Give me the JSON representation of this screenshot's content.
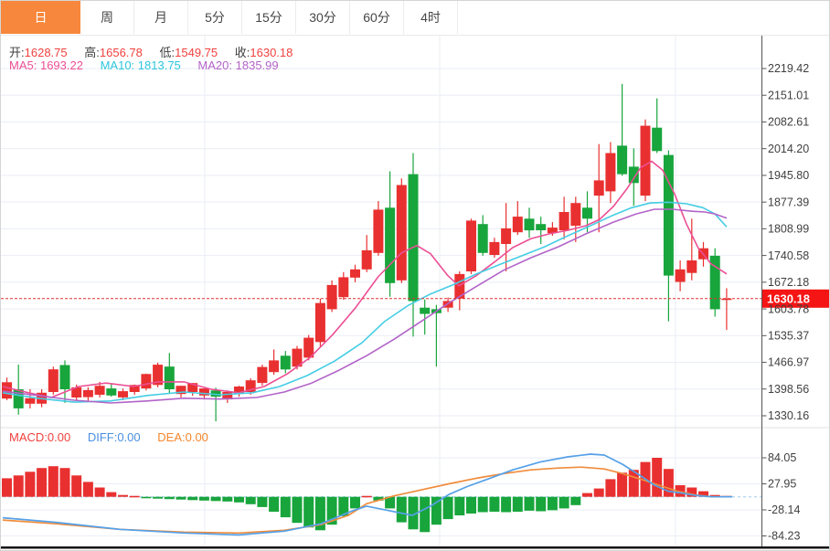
{
  "tabs": {
    "items": [
      {
        "label": "日",
        "active": true
      },
      {
        "label": "周",
        "active": false
      },
      {
        "label": "月",
        "active": false
      },
      {
        "label": "5分",
        "active": false
      },
      {
        "label": "15分",
        "active": false
      },
      {
        "label": "30分",
        "active": false
      },
      {
        "label": "60分",
        "active": false
      },
      {
        "label": "4时",
        "active": false
      }
    ]
  },
  "info": {
    "ohlc": {
      "open_label": "开:",
      "open": "1628.75",
      "high_label": "高:",
      "high": "1656.78",
      "low_label": "低:",
      "low": "1549.75",
      "close_label": "收:",
      "close": "1630.18"
    },
    "ma": {
      "ma5_label": "MA5:",
      "ma5": "1693.22",
      "ma10_label": "MA10:",
      "ma10": "1813.75",
      "ma20_label": "MA20:",
      "ma20": "1835.99"
    }
  },
  "macd_info": {
    "macd_label": "MACD:",
    "macd": "0.00",
    "diff_label": "DIFF:",
    "diff": "0.00",
    "dea_label": "DEA:",
    "dea": "0.00"
  },
  "colors": {
    "up": "#e93030",
    "down": "#18a53c",
    "ma5": "#ec4f95",
    "ma10": "#45cde4",
    "ma20": "#b264c8",
    "diff_line": "#55a0e8",
    "dea_line": "#f08c3c",
    "price_line": "#e03131",
    "badge_bg": "#f51515",
    "badge_text": "#ffffff",
    "grid": "#e9eef5",
    "axis": "#555555",
    "axis_text": "#3f3f3f",
    "zero_line": "#b9d9f0",
    "divider": "#e2e2e2",
    "bottom_bar": "#111111",
    "tab_active_bg": "#f6873c"
  },
  "chart_data": {
    "type": "candlestick+macd",
    "main": {
      "title": "",
      "axis_side": "right",
      "axis_labels": [
        "2219.42",
        "2151.01",
        "2082.61",
        "2014.20",
        "1945.80",
        "1877.39",
        "1808.99",
        "1740.58",
        "1672.18",
        "1603.78",
        "1535.37",
        "1466.97",
        "1398.56",
        "1330.16"
      ],
      "price_max_gridline": 2219.42,
      "price_min_gridline": 1330.16,
      "current_price": 1630.18,
      "current_price_label": "1630.18",
      "candles_ohlc": [
        [
          1374,
          1428,
          1370,
          1416
        ],
        [
          1398,
          1461,
          1333,
          1349
        ],
        [
          1361,
          1398,
          1349,
          1375
        ],
        [
          1361,
          1398,
          1352,
          1389
        ],
        [
          1391,
          1456,
          1384,
          1449
        ],
        [
          1460,
          1472,
          1363,
          1398
        ],
        [
          1377,
          1410,
          1370,
          1403
        ],
        [
          1378,
          1403,
          1368,
          1396
        ],
        [
          1384,
          1417,
          1377,
          1407
        ],
        [
          1400,
          1412,
          1379,
          1382
        ],
        [
          1377,
          1400,
          1370,
          1393
        ],
        [
          1391,
          1410,
          1384,
          1409
        ],
        [
          1400,
          1438,
          1395,
          1437
        ],
        [
          1409,
          1466,
          1403,
          1461
        ],
        [
          1456,
          1491,
          1388,
          1398
        ],
        [
          1386,
          1407,
          1377,
          1407
        ],
        [
          1391,
          1414,
          1381,
          1414
        ],
        [
          1382,
          1400,
          1372,
          1400
        ],
        [
          1395,
          1402,
          1316,
          1379
        ],
        [
          1372,
          1395,
          1363,
          1391
        ],
        [
          1386,
          1407,
          1379,
          1405
        ],
        [
          1391,
          1426,
          1384,
          1421
        ],
        [
          1414,
          1461,
          1407,
          1455
        ],
        [
          1442,
          1500,
          1435,
          1472
        ],
        [
          1484,
          1496,
          1439,
          1449
        ],
        [
          1456,
          1509,
          1449,
          1502
        ],
        [
          1479,
          1537,
          1472,
          1530
        ],
        [
          1519,
          1630,
          1507,
          1619
        ],
        [
          1603,
          1677,
          1596,
          1665
        ],
        [
          1634,
          1698,
          1627,
          1685
        ],
        [
          1684,
          1717,
          1672,
          1705
        ],
        [
          1705,
          1793,
          1698,
          1754
        ],
        [
          1747,
          1880,
          1740,
          1858
        ],
        [
          1863,
          1956,
          1635,
          1670
        ],
        [
          1677,
          1938,
          1670,
          1921
        ],
        [
          1949,
          2003,
          1533,
          1624
        ],
        [
          1607,
          1628,
          1538,
          1591
        ],
        [
          1603,
          1614,
          1456,
          1593
        ],
        [
          1607,
          1633,
          1596,
          1624
        ],
        [
          1630,
          1700,
          1600,
          1693
        ],
        [
          1700,
          1835,
          1693,
          1830
        ],
        [
          1821,
          1844,
          1740,
          1747
        ],
        [
          1742,
          1786,
          1735,
          1775
        ],
        [
          1770,
          1875,
          1700,
          1810
        ],
        [
          1800,
          1880,
          1793,
          1840
        ],
        [
          1835,
          1863,
          1786,
          1805
        ],
        [
          1821,
          1840,
          1770,
          1805
        ],
        [
          1798,
          1826,
          1791,
          1812
        ],
        [
          1805,
          1891,
          1782,
          1852
        ],
        [
          1817,
          1891,
          1775,
          1875
        ],
        [
          1863,
          1905,
          1800,
          1835
        ],
        [
          1894,
          2026,
          1800,
          1933
        ],
        [
          1905,
          2031,
          1875,
          2003
        ],
        [
          2022,
          2180,
          1945,
          1949
        ],
        [
          1968,
          2015,
          1868,
          1926
        ],
        [
          1894,
          2089,
          1880,
          2073
        ],
        [
          2068,
          2143,
          2003,
          2008
        ],
        [
          1998,
          2010,
          1572,
          1689
        ],
        [
          1673,
          1728,
          1649,
          1705
        ],
        [
          1696,
          1835,
          1677,
          1728
        ],
        [
          1731,
          1775,
          1712,
          1759
        ],
        [
          1740,
          1759,
          1584,
          1603
        ],
        [
          1628.75,
          1656.78,
          1549.75,
          1630.18
        ]
      ],
      "ma5_points": [
        [
          2,
          1405
        ],
        [
          30,
          1389
        ],
        [
          55,
          1377
        ],
        [
          85,
          1405
        ],
        [
          115,
          1414
        ],
        [
          145,
          1405
        ],
        [
          172,
          1417
        ],
        [
          200,
          1417
        ],
        [
          230,
          1398
        ],
        [
          260,
          1389
        ],
        [
          288,
          1405
        ],
        [
          313,
          1437
        ],
        [
          338,
          1479
        ],
        [
          363,
          1538
        ],
        [
          388,
          1607
        ],
        [
          413,
          1687
        ],
        [
          438,
          1747
        ],
        [
          455,
          1766
        ],
        [
          470,
          1745
        ],
        [
          489,
          1689
        ],
        [
          501,
          1663
        ],
        [
          520,
          1689
        ],
        [
          540,
          1724
        ],
        [
          560,
          1761
        ],
        [
          580,
          1784
        ],
        [
          600,
          1796
        ],
        [
          620,
          1805
        ],
        [
          640,
          1817
        ],
        [
          655,
          1833
        ],
        [
          670,
          1866
        ],
        [
          685,
          1912
        ],
        [
          700,
          1966
        ],
        [
          712,
          1982
        ],
        [
          724,
          1959
        ],
        [
          737,
          1898
        ],
        [
          750,
          1821
        ],
        [
          763,
          1759
        ],
        [
          777,
          1719
        ],
        [
          794,
          1693.22
        ]
      ],
      "ma10_points": [
        [
          2,
          1389
        ],
        [
          40,
          1375
        ],
        [
          80,
          1365
        ],
        [
          120,
          1368
        ],
        [
          160,
          1382
        ],
        [
          200,
          1391
        ],
        [
          240,
          1384
        ],
        [
          275,
          1389
        ],
        [
          305,
          1405
        ],
        [
          335,
          1433
        ],
        [
          365,
          1470
        ],
        [
          395,
          1517
        ],
        [
          420,
          1572
        ],
        [
          445,
          1612
        ],
        [
          470,
          1642
        ],
        [
          495,
          1666
        ],
        [
          520,
          1693
        ],
        [
          545,
          1717
        ],
        [
          570,
          1740
        ],
        [
          595,
          1763
        ],
        [
          620,
          1791
        ],
        [
          645,
          1817
        ],
        [
          668,
          1842
        ],
        [
          690,
          1863
        ],
        [
          710,
          1875
        ],
        [
          730,
          1877
        ],
        [
          750,
          1873
        ],
        [
          768,
          1863
        ],
        [
          781,
          1847
        ],
        [
          794,
          1813.75
        ]
      ],
      "ma20_points": [
        [
          2,
          1393
        ],
        [
          40,
          1382
        ],
        [
          80,
          1370
        ],
        [
          120,
          1363
        ],
        [
          160,
          1368
        ],
        [
          200,
          1375
        ],
        [
          240,
          1373
        ],
        [
          280,
          1377
        ],
        [
          310,
          1391
        ],
        [
          340,
          1414
        ],
        [
          370,
          1447
        ],
        [
          400,
          1484
        ],
        [
          430,
          1526
        ],
        [
          460,
          1572
        ],
        [
          490,
          1619
        ],
        [
          520,
          1661
        ],
        [
          550,
          1703
        ],
        [
          580,
          1735
        ],
        [
          610,
          1763
        ],
        [
          640,
          1796
        ],
        [
          670,
          1826
        ],
        [
          695,
          1847
        ],
        [
          715,
          1859
        ],
        [
          735,
          1859
        ],
        [
          755,
          1854
        ],
        [
          770,
          1852
        ],
        [
          781,
          1847
        ],
        [
          794,
          1835.99
        ]
      ]
    },
    "macd": {
      "axis_labels": [
        "84.05",
        "27.95",
        "-28.14",
        "-84.23"
      ],
      "axis_values": [
        84.05,
        27.95,
        -28.14,
        -84.23
      ],
      "histogram": [
        40,
        46,
        54,
        62,
        66,
        62,
        46,
        32,
        20,
        10,
        4,
        2,
        -3,
        -4,
        -5,
        -6,
        -7,
        -8,
        -9,
        -10,
        -12,
        -16,
        -22,
        -32,
        -44,
        -56,
        -66,
        -72,
        -60,
        -42,
        -25,
        2,
        -8,
        -25,
        -55,
        -70,
        -76,
        -60,
        -48,
        -40,
        -36,
        -33,
        -32,
        -33,
        -32,
        -30,
        -31,
        -29,
        -25,
        -18,
        8,
        18,
        38,
        52,
        58,
        75,
        84,
        60,
        25,
        20,
        12,
        4,
        2
      ],
      "diff_points": [
        [
          2,
          -45
        ],
        [
          60,
          -55
        ],
        [
          130,
          -70
        ],
        [
          200,
          -78
        ],
        [
          260,
          -82
        ],
        [
          310,
          -74
        ],
        [
          350,
          -58
        ],
        [
          385,
          -30
        ],
        [
          400,
          -20
        ],
        [
          425,
          -30
        ],
        [
          450,
          -40
        ],
        [
          470,
          -20
        ],
        [
          490,
          5
        ],
        [
          510,
          22
        ],
        [
          535,
          40
        ],
        [
          560,
          58
        ],
        [
          590,
          75
        ],
        [
          620,
          86
        ],
        [
          645,
          92
        ],
        [
          660,
          90
        ],
        [
          680,
          70
        ],
        [
          700,
          45
        ],
        [
          715,
          25
        ],
        [
          730,
          12
        ],
        [
          745,
          8
        ],
        [
          760,
          3
        ],
        [
          778,
          0
        ],
        [
          800,
          0
        ]
      ],
      "dea_points": [
        [
          2,
          -50
        ],
        [
          60,
          -58
        ],
        [
          130,
          -70
        ],
        [
          200,
          -76
        ],
        [
          260,
          -78
        ],
        [
          310,
          -72
        ],
        [
          350,
          -60
        ],
        [
          380,
          -40
        ],
        [
          400,
          -15
        ],
        [
          430,
          2
        ],
        [
          460,
          15
        ],
        [
          490,
          28
        ],
        [
          520,
          40
        ],
        [
          550,
          50
        ],
        [
          580,
          58
        ],
        [
          610,
          62
        ],
        [
          635,
          64
        ],
        [
          660,
          60
        ],
        [
          680,
          50
        ],
        [
          700,
          38
        ],
        [
          720,
          25
        ],
        [
          740,
          12
        ],
        [
          760,
          4
        ],
        [
          778,
          0
        ],
        [
          800,
          0
        ]
      ]
    }
  }
}
